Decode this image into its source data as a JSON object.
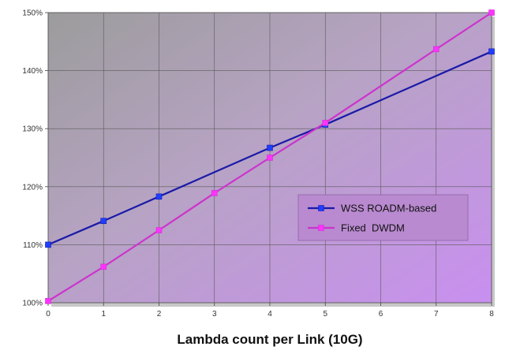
{
  "chart_data": {
    "type": "line",
    "xlabel": "Lambda count per Link (10G)",
    "ylabel": "",
    "title": "",
    "x": [
      0,
      1,
      2,
      3,
      4,
      5,
      6,
      7,
      8
    ],
    "xlim": [
      0,
      8
    ],
    "ylim": [
      100,
      150
    ],
    "y_ticks": [
      100,
      110,
      120,
      130,
      140,
      150
    ],
    "y_tick_labels": [
      "100%",
      "110%",
      "120%",
      "130%",
      "140%",
      "150%"
    ],
    "x_tick_labels": [
      "0",
      "1",
      "2",
      "3",
      "4",
      "5",
      "6",
      "7",
      "8"
    ],
    "grid": true,
    "legend_position": "lower-right",
    "series": [
      {
        "name": "WSS ROADM-based",
        "color": "#1a1aa8",
        "marker_color": "#1f3fff",
        "points": [
          {
            "x": 0,
            "y": 110
          },
          {
            "x": 1,
            "y": 114.1
          },
          {
            "x": 2,
            "y": 118.3
          },
          {
            "x": 4,
            "y": 126.7
          },
          {
            "x": 5,
            "y": 130.7
          },
          {
            "x": 8,
            "y": 143.3
          }
        ]
      },
      {
        "name": "Fixed  DWDM",
        "color": "#cc33cc",
        "marker_color": "#ff33ff",
        "points": [
          {
            "x": 0,
            "y": 100.3
          },
          {
            "x": 1,
            "y": 106.2
          },
          {
            "x": 2,
            "y": 112.5
          },
          {
            "x": 3,
            "y": 118.9
          },
          {
            "x": 4,
            "y": 125
          },
          {
            "x": 5,
            "y": 131
          },
          {
            "x": 7,
            "y": 143.7
          },
          {
            "x": 8,
            "y": 150
          }
        ]
      }
    ]
  }
}
